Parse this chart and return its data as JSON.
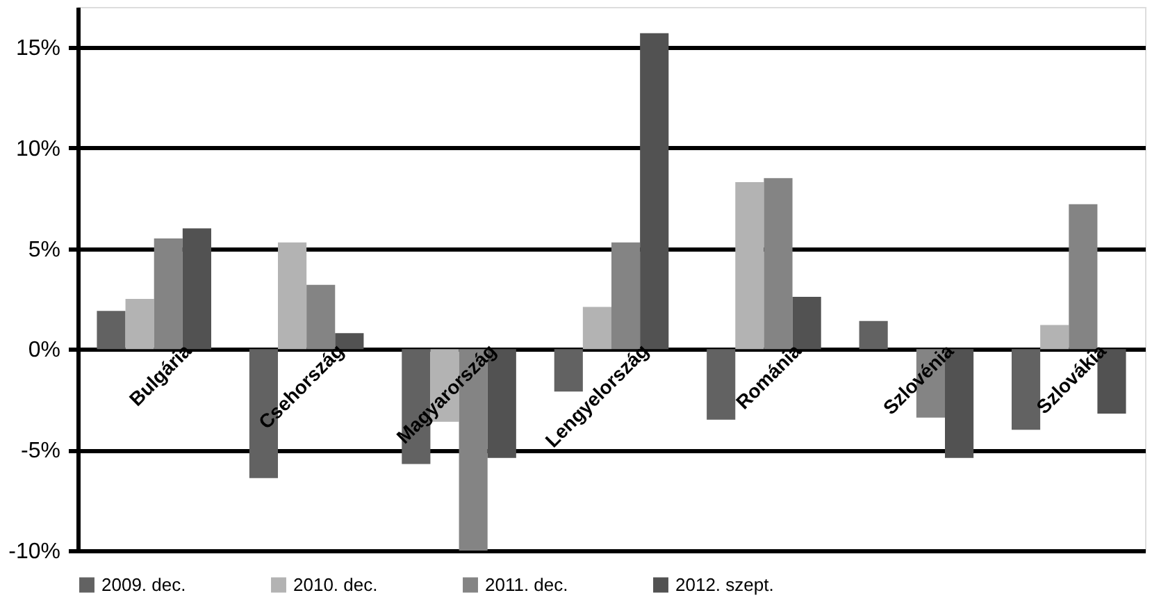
{
  "chart_data": {
    "type": "bar",
    "categories": [
      "Bulgária",
      "Csehország",
      "Magyarország",
      "Lengyelország",
      "Románia",
      "Szlovénia",
      "Szlovákia"
    ],
    "series": [
      {
        "name": "2009. dec.",
        "color": "#626262",
        "values": [
          1.9,
          -6.4,
          -5.7,
          -2.1,
          -3.5,
          1.4,
          -4.0
        ]
      },
      {
        "name": "2010. dec.",
        "color": "#b3b3b3",
        "values": [
          2.5,
          5.3,
          -3.6,
          2.1,
          8.3,
          null,
          1.2
        ]
      },
      {
        "name": "2011. dec.",
        "color": "#848484",
        "values": [
          5.5,
          3.2,
          -10.0,
          5.3,
          8.5,
          -3.4,
          7.2
        ]
      },
      {
        "name": "2012. szept.",
        "color": "#525252",
        "values": [
          6.0,
          0.8,
          -5.4,
          15.7,
          2.6,
          -5.4,
          -3.2
        ]
      }
    ],
    "ylim": [
      -10,
      17
    ],
    "yticks": [
      {
        "value": -10,
        "label": "-10%"
      },
      {
        "value": -5,
        "label": "-5%"
      },
      {
        "value": 0,
        "label": "0%"
      },
      {
        "value": 5,
        "label": "5%"
      },
      {
        "value": 10,
        "label": "10%"
      },
      {
        "value": 15,
        "label": "15%"
      }
    ],
    "grid": "y",
    "legend": "bottom"
  }
}
